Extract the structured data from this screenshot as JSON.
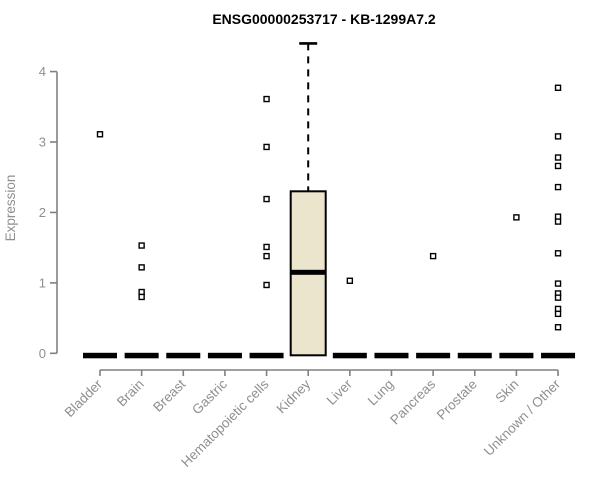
{
  "title": "ENSG00000253717 - KB-1299A7.2",
  "colors": {
    "box_fill": "#ECE5CD",
    "box_stroke": "#000000",
    "bar_color": "#000000",
    "axis_line": "#808080",
    "axis_text": "#8f8f8f",
    "title_text": "#000000",
    "background": "#ffffff"
  },
  "chart_data": {
    "type": "boxplot",
    "title": "ENSG00000253717 - KB-1299A7.2",
    "xlabel": "",
    "ylabel": "Expression",
    "ylim": [
      0,
      4.4
    ],
    "yticks": [
      0,
      1,
      2,
      3,
      4
    ],
    "grid": "off",
    "legend": "none",
    "categories": [
      "Bladder",
      "Brain",
      "Breast",
      "Gastric",
      "Hematopoietic cells",
      "Kidney",
      "Liver",
      "Lung",
      "Pancreas",
      "Prostate",
      "Skin",
      "Unknown / Other"
    ],
    "boxes": [
      {
        "category": "Bladder",
        "q1": 0,
        "median": 0,
        "q3": 0,
        "whisker_low": 0,
        "whisker_high": 0,
        "outliers": [
          3.11
        ]
      },
      {
        "category": "Brain",
        "q1": 0,
        "median": 0,
        "q3": 0,
        "whisker_low": 0,
        "whisker_high": 0,
        "outliers": [
          1.53,
          1.22,
          0.87,
          0.8
        ]
      },
      {
        "category": "Breast",
        "q1": 0,
        "median": 0,
        "q3": 0,
        "whisker_low": 0,
        "whisker_high": 0,
        "outliers": []
      },
      {
        "category": "Gastric",
        "q1": 0,
        "median": 0,
        "q3": 0,
        "whisker_low": 0,
        "whisker_high": 0,
        "outliers": []
      },
      {
        "category": "Hematopoietic cells",
        "q1": 0,
        "median": 0,
        "q3": 0,
        "whisker_low": 0,
        "whisker_high": 0,
        "outliers": [
          3.61,
          2.93,
          2.19,
          1.51,
          1.38,
          0.97
        ]
      },
      {
        "category": "Kidney",
        "q1": 0,
        "median": 1.15,
        "q3": 2.3,
        "whisker_low": 0,
        "whisker_high": 4.4,
        "outliers": []
      },
      {
        "category": "Liver",
        "q1": 0,
        "median": 0,
        "q3": 0,
        "whisker_low": 0,
        "whisker_high": 0,
        "outliers": [
          1.03
        ]
      },
      {
        "category": "Lung",
        "q1": 0,
        "median": 0,
        "q3": 0,
        "whisker_low": 0,
        "whisker_high": 0,
        "outliers": []
      },
      {
        "category": "Pancreas",
        "q1": 0,
        "median": 0,
        "q3": 0,
        "whisker_low": 0,
        "whisker_high": 0,
        "outliers": [
          1.38
        ]
      },
      {
        "category": "Prostate",
        "q1": 0,
        "median": 0,
        "q3": 0,
        "whisker_low": 0,
        "whisker_high": 0,
        "outliers": []
      },
      {
        "category": "Skin",
        "q1": 0,
        "median": 0,
        "q3": 0,
        "whisker_low": 0,
        "whisker_high": 0,
        "outliers": [
          1.93
        ]
      },
      {
        "category": "Unknown / Other",
        "q1": 0,
        "median": 0,
        "q3": 0,
        "whisker_low": 0,
        "whisker_high": 0,
        "outliers": [
          3.77,
          3.08,
          2.78,
          2.66,
          2.36,
          1.94,
          1.87,
          1.42,
          0.99,
          0.85,
          0.79,
          0.63,
          0.56,
          0.37
        ]
      }
    ]
  }
}
